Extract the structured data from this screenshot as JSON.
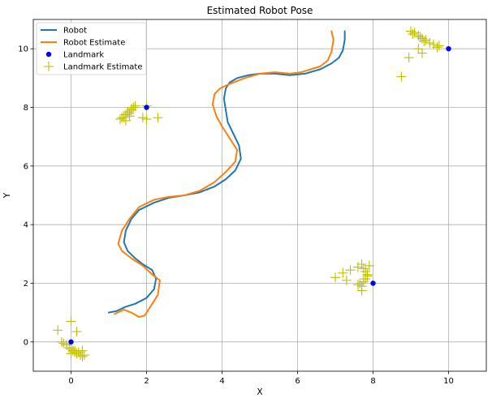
{
  "chart_data": {
    "type": "line",
    "title": "Estimated Robot Pose",
    "xlabel": "X",
    "ylabel": "Y",
    "xlim": [
      -1,
      11
    ],
    "ylim": [
      -1,
      11
    ],
    "xticks": [
      0,
      2,
      4,
      6,
      8,
      10
    ],
    "yticks": [
      0,
      2,
      4,
      6,
      8,
      10
    ],
    "grid": true,
    "legend_position": "top-left",
    "colors": {
      "robot": "#1f77b4",
      "robot_estimate": "#ff7f0e",
      "landmark": "#0000ff",
      "landmark_estimate": "#bfbf00"
    },
    "series": [
      {
        "name": "Robot",
        "kind": "line",
        "x": [
          1.0,
          1.2,
          1.45,
          1.7,
          2.0,
          2.2,
          2.25,
          2.15,
          1.9,
          1.7,
          1.5,
          1.4,
          1.45,
          1.6,
          1.8,
          2.2,
          2.6,
          3.0,
          3.4,
          3.8,
          4.1,
          4.35,
          4.5,
          4.45,
          4.3,
          4.15,
          4.1,
          4.05,
          4.1,
          4.2,
          4.4,
          4.7,
          5.0,
          5.4,
          5.8,
          6.2,
          6.6,
          6.9,
          7.1,
          7.2,
          7.25,
          7.25
        ],
        "y": [
          1.0,
          1.05,
          1.2,
          1.3,
          1.5,
          1.8,
          2.15,
          2.45,
          2.65,
          2.85,
          3.1,
          3.4,
          3.8,
          4.2,
          4.5,
          4.75,
          4.92,
          5.0,
          5.1,
          5.3,
          5.55,
          5.85,
          6.25,
          6.7,
          7.1,
          7.5,
          7.9,
          8.3,
          8.65,
          8.85,
          9.0,
          9.1,
          9.15,
          9.15,
          9.1,
          9.15,
          9.3,
          9.5,
          9.7,
          9.95,
          10.3,
          10.6
        ]
      },
      {
        "name": "Robot Estimate",
        "kind": "line",
        "x": [
          1.15,
          1.4,
          1.6,
          1.8,
          1.95,
          2.1,
          2.3,
          2.35,
          2.15,
          1.9,
          1.6,
          1.35,
          1.25,
          1.35,
          1.55,
          1.8,
          2.2,
          2.6,
          3.0,
          3.4,
          3.8,
          4.1,
          4.35,
          4.4,
          4.2,
          4.0,
          3.85,
          3.75,
          3.8,
          3.95,
          4.2,
          4.6,
          5.0,
          5.4,
          5.8,
          6.1,
          6.35,
          6.6,
          6.8,
          6.9,
          6.95,
          6.9
        ],
        "y": [
          0.95,
          1.1,
          1.0,
          0.85,
          0.9,
          1.2,
          1.6,
          2.1,
          2.3,
          2.6,
          2.85,
          3.1,
          3.35,
          3.8,
          4.2,
          4.6,
          4.85,
          4.95,
          5.0,
          5.15,
          5.45,
          5.8,
          6.15,
          6.55,
          6.95,
          7.35,
          7.7,
          8.1,
          8.45,
          8.65,
          8.8,
          9.0,
          9.15,
          9.2,
          9.15,
          9.2,
          9.3,
          9.4,
          9.6,
          9.9,
          10.3,
          10.6
        ]
      },
      {
        "name": "Landmark",
        "kind": "scatter",
        "x": [
          0,
          2,
          10,
          8
        ],
        "y": [
          0,
          8,
          10,
          2
        ]
      },
      {
        "name": "Landmark Estimate",
        "kind": "scatter",
        "x": [
          -0.35,
          0.0,
          0.15,
          -0.25,
          -0.2,
          -0.12,
          -0.05,
          0.0,
          0.05,
          0.1,
          0.15,
          0.2,
          0.25,
          0.3,
          0.35,
          0.1,
          0.0,
          0.3,
          1.3,
          1.4,
          1.45,
          1.5,
          1.55,
          1.6,
          1.65,
          1.7,
          1.45,
          1.55,
          1.35,
          1.6,
          2.0,
          1.9,
          2.3,
          2.0,
          9.0,
          9.1,
          9.2,
          9.3,
          9.4,
          9.5,
          9.6,
          9.7,
          9.05,
          9.25,
          9.35,
          8.95,
          9.2,
          9.3,
          8.75,
          9.75,
          7.0,
          7.2,
          7.4,
          7.6,
          7.7,
          7.75,
          7.8,
          7.85,
          7.9,
          7.65,
          7.7,
          7.75,
          7.8,
          7.85,
          7.7,
          7.6,
          7.3
        ],
        "y": [
          0.4,
          0.7,
          0.35,
          0.0,
          -0.05,
          -0.1,
          -0.2,
          -0.25,
          -0.3,
          -0.35,
          -0.4,
          -0.35,
          -0.45,
          -0.5,
          -0.45,
          -0.3,
          -0.4,
          -0.3,
          7.6,
          7.65,
          7.75,
          7.85,
          7.7,
          7.9,
          8.0,
          8.05,
          7.55,
          7.8,
          7.65,
          7.95,
          8.05,
          7.65,
          7.65,
          7.6,
          10.6,
          10.55,
          10.45,
          10.35,
          10.3,
          10.2,
          10.15,
          10.05,
          10.5,
          10.4,
          10.25,
          9.7,
          10.0,
          9.85,
          9.05,
          10.1,
          2.2,
          2.35,
          2.45,
          2.55,
          2.65,
          2.5,
          2.4,
          2.3,
          2.6,
          2.0,
          1.9,
          2.05,
          2.15,
          2.25,
          1.75,
          1.95,
          2.1
        ]
      }
    ]
  }
}
